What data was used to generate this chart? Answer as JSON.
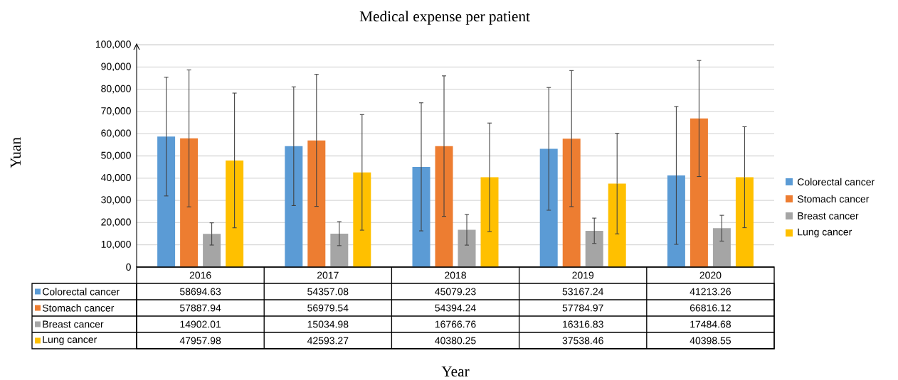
{
  "chart_data": {
    "type": "bar",
    "title": "Medical expense per patient",
    "annotations": [
      "Year"
    ],
    "ylabel": "Yuan",
    "categories": [
      "2016",
      "2017",
      "2018",
      "2019",
      "2020"
    ],
    "series": [
      {
        "name": "Colorectal cancer",
        "color": "#5b9bd5",
        "values": [
          58694.63,
          54357.08,
          45079.23,
          53167.24,
          41213.26
        ],
        "errors": [
          26700,
          26700,
          28800,
          27600,
          31000
        ]
      },
      {
        "name": "Stomach cancer",
        "color": "#ed7d31",
        "values": [
          57887.94,
          56979.54,
          54394.24,
          57784.97,
          66816.12
        ],
        "errors": [
          30800,
          29700,
          31600,
          30600,
          26100
        ]
      },
      {
        "name": "Breast cancer",
        "color": "#a5a5a5",
        "values": [
          14902.01,
          15034.98,
          16766.76,
          16316.83,
          17484.68
        ],
        "errors": [
          5000,
          5400,
          6900,
          5700,
          5800
        ]
      },
      {
        "name": "Lung cancer",
        "color": "#ffc000",
        "values": [
          47957.98,
          42593.27,
          40380.25,
          37538.46,
          40398.55
        ],
        "errors": [
          30300,
          26000,
          24400,
          22600,
          22700
        ]
      }
    ],
    "ylim": [
      0,
      100000
    ],
    "yticks": [
      {
        "value": 0,
        "label": "0"
      },
      {
        "value": 10000,
        "label": "10,000"
      },
      {
        "value": 20000,
        "label": "20,000"
      },
      {
        "value": 30000,
        "label": "30,000"
      },
      {
        "value": 40000,
        "label": "40,000"
      },
      {
        "value": 50000,
        "label": "50,000"
      },
      {
        "value": 60000,
        "label": "60,000"
      },
      {
        "value": 70000,
        "label": "70,000"
      },
      {
        "value": 80000,
        "label": "80,000"
      },
      {
        "value": 90000,
        "label": "90,000"
      },
      {
        "value": 100000,
        "label": "100,000"
      }
    ],
    "grid": "y",
    "legend": "right",
    "data_labels": true
  }
}
